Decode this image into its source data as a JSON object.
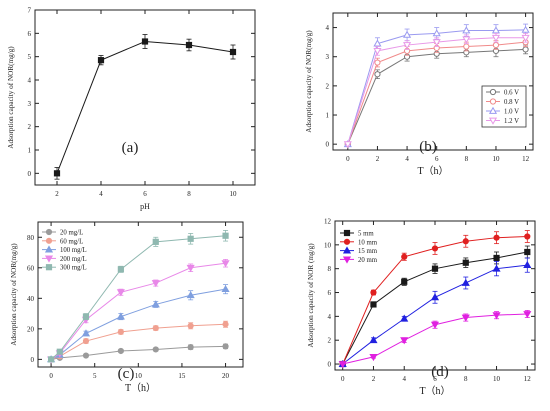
{
  "chart_data": [
    {
      "type": "line",
      "panel_label": "(a)",
      "xlabel": "pH",
      "ylabel": "Adsorption capacity of NOR(mg/g)",
      "xlim": [
        1,
        11
      ],
      "ylim": [
        -0.5,
        7
      ],
      "xticks": [
        2,
        4,
        6,
        8,
        10
      ],
      "yticks": [
        0,
        1,
        2,
        3,
        4,
        5,
        6,
        7
      ],
      "legend": null,
      "series": [
        {
          "color": "#1a1a1a",
          "marker": "square",
          "x": [
            2,
            4,
            6,
            8,
            10
          ],
          "y": [
            0.0,
            4.85,
            5.65,
            5.5,
            5.2
          ],
          "err": [
            0.25,
            0.2,
            0.3,
            0.25,
            0.3
          ]
        }
      ]
    },
    {
      "type": "line",
      "panel_label": "(b)",
      "xlabel": "T（h）",
      "ylabel": "Adsorption capacity of NOR(mg/g)",
      "xlim": [
        -1,
        12.5
      ],
      "ylim": [
        -0.2,
        4.5
      ],
      "xticks": [
        0,
        2,
        4,
        6,
        8,
        10,
        12
      ],
      "yticks": [
        0,
        1,
        2,
        3,
        4
      ],
      "legend": "bottom-right",
      "series": [
        {
          "name": "0.6 V",
          "color": "#777777",
          "marker": "circle",
          "x": [
            0,
            2,
            4,
            6,
            8,
            10,
            12
          ],
          "y": [
            0,
            2.4,
            3.0,
            3.1,
            3.15,
            3.2,
            3.25
          ],
          "err": [
            0,
            0.15,
            0.15,
            0.15,
            0.15,
            0.2,
            0.15
          ]
        },
        {
          "name": "0.8 V",
          "color": "#f08a8a",
          "marker": "circle",
          "x": [
            0,
            2,
            4,
            6,
            8,
            10,
            12
          ],
          "y": [
            0,
            2.8,
            3.2,
            3.3,
            3.35,
            3.4,
            3.5
          ],
          "err": [
            0,
            0.15,
            0.15,
            0.15,
            0.15,
            0.15,
            0.15
          ]
        },
        {
          "name": "1.0 V",
          "color": "#9a9af0",
          "marker": "triangle",
          "x": [
            0,
            2,
            4,
            6,
            8,
            10,
            12
          ],
          "y": [
            0,
            3.45,
            3.75,
            3.8,
            3.9,
            3.9,
            3.92
          ],
          "err": [
            0,
            0.2,
            0.2,
            0.2,
            0.2,
            0.2,
            0.2
          ]
        },
        {
          "name": "1.2 V",
          "color": "#e898e8",
          "marker": "triangle-down",
          "x": [
            0,
            2,
            4,
            6,
            8,
            10,
            12
          ],
          "y": [
            0,
            3.2,
            3.4,
            3.5,
            3.6,
            3.65,
            3.65
          ],
          "err": [
            0,
            0.15,
            0.15,
            0.15,
            0.15,
            0.15,
            0.15
          ]
        }
      ]
    },
    {
      "type": "line",
      "panel_label": "(c)",
      "xlabel": "T（h）",
      "ylabel": "Adsorption capacity of NOR(mg/g)",
      "xlim": [
        -1.5,
        22
      ],
      "ylim": [
        -5,
        90
      ],
      "xticks": [
        0,
        5,
        10,
        15,
        20
      ],
      "yticks": [
        0,
        20,
        40,
        60,
        80
      ],
      "legend": "top-left",
      "series": [
        {
          "name": "20 mg/L",
          "color": "#9a9a9a",
          "marker": "circle",
          "x": [
            0,
            1,
            4,
            8,
            12,
            16,
            20
          ],
          "y": [
            0,
            1,
            2.5,
            5.5,
            6.5,
            8,
            8.5
          ],
          "err": [
            0,
            0.5,
            1,
            1,
            1,
            1.5,
            1.5
          ]
        },
        {
          "name": "60 mg/L",
          "color": "#f0a090",
          "marker": "circle",
          "x": [
            0,
            1,
            4,
            8,
            12,
            16,
            20
          ],
          "y": [
            0,
            2,
            12,
            18,
            20.5,
            22,
            23
          ],
          "err": [
            0,
            1,
            1.5,
            1.5,
            1.5,
            2,
            2
          ]
        },
        {
          "name": "100 mg/L",
          "color": "#7f9fdf",
          "marker": "triangle",
          "x": [
            0,
            1,
            4,
            8,
            12,
            16,
            20
          ],
          "y": [
            0,
            3,
            17,
            28,
            36,
            42,
            46
          ],
          "err": [
            0,
            1,
            1.5,
            2,
            2,
            3,
            3
          ]
        },
        {
          "name": "200 mg/L",
          "color": "#e888e8",
          "marker": "triangle-down",
          "x": [
            0,
            1,
            4,
            8,
            12,
            16,
            20
          ],
          "y": [
            0,
            4,
            26,
            44,
            50,
            60,
            63
          ],
          "err": [
            0,
            1,
            2,
            2,
            2,
            2.5,
            2.5
          ]
        },
        {
          "name": "300 mg/L",
          "color": "#8fb8b0",
          "marker": "square",
          "x": [
            0,
            1,
            4,
            8,
            12,
            16,
            20
          ],
          "y": [
            0,
            5,
            28,
            59,
            77,
            79,
            81
          ],
          "err": [
            0,
            1,
            2,
            2,
            3,
            3.5,
            3.5
          ]
        }
      ]
    },
    {
      "type": "line",
      "panel_label": "(d)",
      "xlabel": "T（h）",
      "ylabel": "Adsorption capacity of NOR (mg/g)",
      "xlim": [
        -0.5,
        12.5
      ],
      "ylim": [
        -0.5,
        12
      ],
      "xticks": [
        0,
        2,
        4,
        6,
        8,
        10,
        12
      ],
      "yticks": [
        0,
        2,
        4,
        6,
        8,
        10,
        12
      ],
      "legend": "top-left",
      "series": [
        {
          "name": "5 mm",
          "color": "#1a1a1a",
          "marker": "square",
          "x": [
            0,
            2,
            4,
            6,
            8,
            10,
            12
          ],
          "y": [
            0,
            5.0,
            6.9,
            8.0,
            8.5,
            8.9,
            9.4
          ],
          "err": [
            0,
            0.2,
            0.3,
            0.4,
            0.4,
            0.5,
            0.5
          ]
        },
        {
          "name": "10 mm",
          "color": "#e02020",
          "marker": "circle",
          "x": [
            0,
            2,
            4,
            6,
            8,
            10,
            12
          ],
          "y": [
            0,
            6.0,
            9.0,
            9.7,
            10.3,
            10.6,
            10.7
          ],
          "err": [
            0,
            0.2,
            0.3,
            0.5,
            0.5,
            0.5,
            0.5
          ]
        },
        {
          "name": "15 mm",
          "color": "#2020e0",
          "marker": "triangle",
          "x": [
            0,
            2,
            4,
            6,
            8,
            10,
            12
          ],
          "y": [
            0,
            2.0,
            3.8,
            5.6,
            6.8,
            8.0,
            8.3
          ],
          "err": [
            0,
            0.2,
            0.2,
            0.5,
            0.5,
            0.6,
            0.6
          ]
        },
        {
          "name": "20 mm",
          "color": "#e020e0",
          "marker": "triangle-down",
          "x": [
            0,
            2,
            4,
            6,
            8,
            10,
            12
          ],
          "y": [
            0,
            0.6,
            2.0,
            3.3,
            3.9,
            4.1,
            4.2
          ],
          "err": [
            0,
            0.1,
            0.2,
            0.3,
            0.3,
            0.3,
            0.3
          ]
        }
      ]
    }
  ]
}
